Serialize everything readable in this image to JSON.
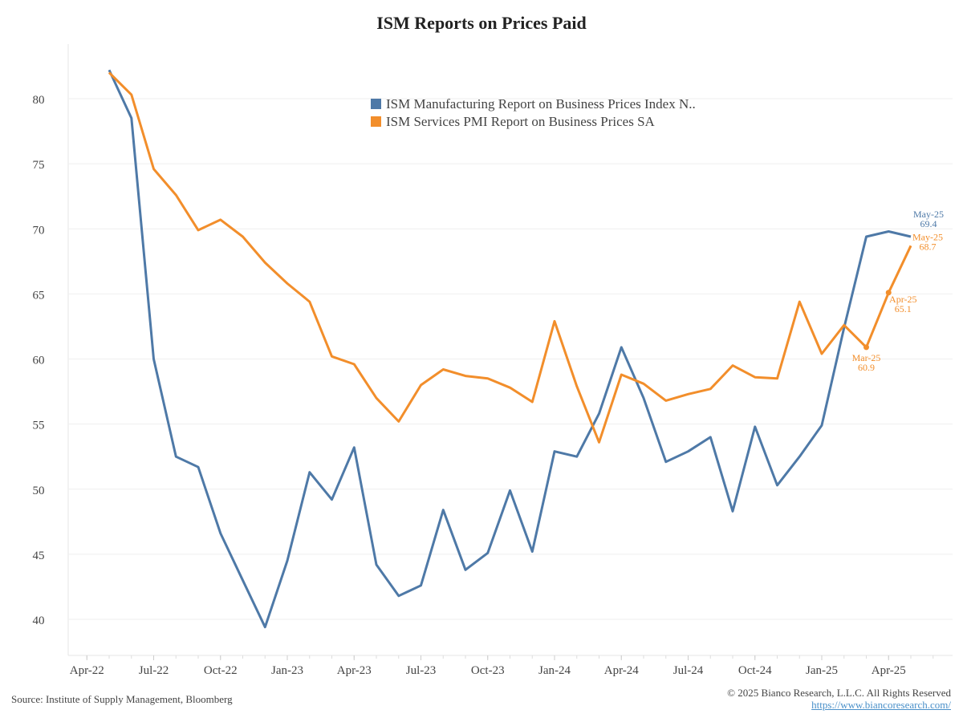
{
  "chart_data": {
    "type": "line",
    "title": "ISM Reports on Prices Paid",
    "xlabel": "",
    "ylabel": "",
    "ylim": [
      37.5,
      84
    ],
    "yticks": [
      40,
      45,
      50,
      55,
      60,
      65,
      70,
      75,
      80
    ],
    "grid": true,
    "legend_position": "top-center",
    "x": [
      "May-22",
      "Jun-22",
      "Jul-22",
      "Aug-22",
      "Sep-22",
      "Oct-22",
      "Nov-22",
      "Dec-22",
      "Jan-23",
      "Feb-23",
      "Mar-23",
      "Apr-23",
      "May-23",
      "Jun-23",
      "Jul-23",
      "Aug-23",
      "Sep-23",
      "Oct-23",
      "Nov-23",
      "Dec-23",
      "Jan-24",
      "Feb-24",
      "Mar-24",
      "Apr-24",
      "May-24",
      "Jun-24",
      "Jul-24",
      "Aug-24",
      "Sep-24",
      "Oct-24",
      "Nov-24",
      "Dec-24",
      "Jan-25",
      "Feb-25",
      "Mar-25",
      "Apr-25",
      "May-25"
    ],
    "xtick_labels": [
      "Apr-22",
      "Jul-22",
      "Oct-22",
      "Jan-23",
      "Apr-23",
      "Jul-23",
      "Oct-23",
      "Jan-24",
      "Apr-24",
      "Jul-24",
      "Oct-24",
      "Jan-25",
      "Apr-25"
    ],
    "series": [
      {
        "name": "ISM Manufacturing Report on Business Prices Index N..",
        "color": "#4e79a7",
        "values": [
          82.2,
          78.5,
          60.0,
          52.5,
          51.7,
          46.6,
          43.0,
          39.4,
          44.5,
          51.3,
          49.2,
          53.2,
          44.2,
          41.8,
          42.6,
          48.4,
          43.8,
          45.1,
          49.9,
          45.2,
          52.9,
          52.5,
          55.8,
          60.9,
          57.0,
          52.1,
          52.9,
          54.0,
          48.3,
          54.8,
          50.3,
          52.5,
          54.9,
          62.4,
          69.4,
          69.8,
          69.4
        ]
      },
      {
        "name": "ISM Services PMI Report on Business Prices SA",
        "color": "#f28e2b",
        "values": [
          82.0,
          80.3,
          74.6,
          72.6,
          69.9,
          70.7,
          69.4,
          67.4,
          65.8,
          64.4,
          60.2,
          59.6,
          57.0,
          55.2,
          58.0,
          59.2,
          58.7,
          58.5,
          57.8,
          56.7,
          62.9,
          57.9,
          53.6,
          58.8,
          58.1,
          56.8,
          57.3,
          57.7,
          59.5,
          58.6,
          58.5,
          64.4,
          60.4,
          62.6,
          60.9,
          65.1,
          68.7
        ]
      }
    ],
    "annotations": [
      {
        "series": 0,
        "index": 36,
        "label": "May-25",
        "value": "69.4"
      },
      {
        "series": 1,
        "index": 36,
        "label": "May-25",
        "value": "68.7"
      },
      {
        "series": 1,
        "index": 35,
        "label": "Apr-25",
        "value": "65.1"
      },
      {
        "series": 1,
        "index": 34,
        "label": "Mar-25",
        "value": "60.9"
      }
    ]
  },
  "footer": {
    "source": "Source: Institute of Supply Management, Bloomberg",
    "copyright": "© 2025 Bianco Research, L.L.C. All Rights Reserved",
    "url": "https://www.biancoresearch.com/"
  }
}
